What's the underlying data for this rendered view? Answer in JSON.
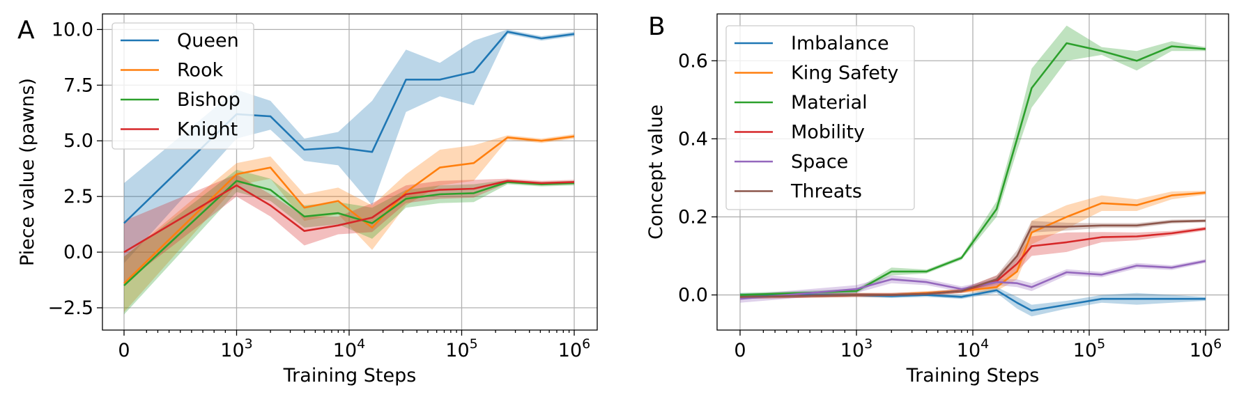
{
  "chart_data": [
    {
      "type": "line",
      "panel_label": "A",
      "xlabel": "Training Steps",
      "ylabel": "Piece value (pawns)",
      "x_scale": "symlog",
      "x_ticks": [
        {
          "value": 0,
          "label": "0"
        },
        {
          "value": 1000,
          "label": "10",
          "exp": "3"
        },
        {
          "value": 10000,
          "label": "10",
          "exp": "4"
        },
        {
          "value": 100000,
          "label": "10",
          "exp": "5"
        },
        {
          "value": 1000000,
          "label": "10",
          "exp": "6"
        }
      ],
      "ylim": [
        -3.5,
        10.7
      ],
      "y_ticks": [
        {
          "value": -2.5,
          "label": "−2.5"
        },
        {
          "value": 0,
          "label": "0.0"
        },
        {
          "value": 2.5,
          "label": "2.5"
        },
        {
          "value": 5,
          "label": "5.0"
        },
        {
          "value": 7.5,
          "label": "7.5"
        },
        {
          "value": 10,
          "label": "10.0"
        }
      ],
      "grid": true,
      "legend_position": "top-left",
      "x": [
        0,
        1000,
        2000,
        4000,
        8000,
        16000,
        32000,
        64000,
        128000,
        256000,
        512000,
        1000000
      ],
      "series": [
        {
          "name": "Queen",
          "color": "#1f77b4",
          "values": [
            1.3,
            6.2,
            6.1,
            4.6,
            4.7,
            4.5,
            7.75,
            7.75,
            8.1,
            9.9,
            9.6,
            9.8
          ],
          "lower": [
            -0.5,
            5.1,
            5.5,
            4.1,
            3.9,
            2.1,
            6.3,
            7.0,
            6.6,
            9.8,
            9.5,
            9.7
          ],
          "upper": [
            3.1,
            7.3,
            6.8,
            5.1,
            5.4,
            6.8,
            9.1,
            8.5,
            9.5,
            10.0,
            9.7,
            9.9
          ]
        },
        {
          "name": "Rook",
          "color": "#ff7f0e",
          "values": [
            -1.4,
            3.5,
            3.8,
            2.0,
            2.3,
            1.1,
            2.7,
            3.8,
            4.0,
            5.15,
            5.0,
            5.2
          ],
          "lower": [
            -2.7,
            3.0,
            3.3,
            1.4,
            1.7,
            0.1,
            2.1,
            3.0,
            3.2,
            5.05,
            4.9,
            5.1
          ],
          "upper": [
            -0.2,
            4.0,
            4.3,
            2.6,
            2.9,
            2.1,
            3.5,
            4.6,
            4.8,
            5.25,
            5.1,
            5.3
          ]
        },
        {
          "name": "Bishop",
          "color": "#2ca02c",
          "values": [
            -1.5,
            3.2,
            2.8,
            1.6,
            1.75,
            1.3,
            2.4,
            2.6,
            2.65,
            3.15,
            3.05,
            3.1
          ],
          "lower": [
            -2.8,
            2.7,
            2.3,
            1.1,
            1.25,
            0.6,
            2.0,
            2.2,
            2.25,
            3.05,
            2.95,
            3.0
          ],
          "upper": [
            -0.2,
            3.7,
            3.3,
            2.1,
            2.25,
            2.0,
            2.8,
            3.0,
            3.05,
            3.25,
            3.15,
            3.2
          ]
        },
        {
          "name": "Knight",
          "color": "#d62728",
          "values": [
            0.0,
            3.0,
            2.1,
            0.95,
            1.2,
            1.55,
            2.6,
            2.8,
            2.85,
            3.2,
            3.1,
            3.15
          ],
          "lower": [
            -1.4,
            2.5,
            1.6,
            0.3,
            0.8,
            0.9,
            2.2,
            2.4,
            2.45,
            3.1,
            3.0,
            3.05
          ],
          "upper": [
            1.4,
            3.5,
            2.6,
            1.6,
            1.6,
            2.2,
            3.0,
            3.2,
            3.25,
            3.3,
            3.2,
            3.25
          ]
        }
      ]
    },
    {
      "type": "line",
      "panel_label": "B",
      "xlabel": "Training Steps",
      "ylabel": "Concept value",
      "x_scale": "symlog",
      "x_ticks": [
        {
          "value": 0,
          "label": "0"
        },
        {
          "value": 1000,
          "label": "10",
          "exp": "3"
        },
        {
          "value": 10000,
          "label": "10",
          "exp": "4"
        },
        {
          "value": 100000,
          "label": "10",
          "exp": "5"
        },
        {
          "value": 1000000,
          "label": "10",
          "exp": "6"
        }
      ],
      "ylim": [
        -0.09,
        0.72
      ],
      "y_ticks": [
        {
          "value": 0,
          "label": "0.0"
        },
        {
          "value": 0.2,
          "label": "0.2"
        },
        {
          "value": 0.4,
          "label": "0.4"
        },
        {
          "value": 0.6,
          "label": "0.6"
        }
      ],
      "grid": true,
      "legend_position": "top-left",
      "x": [
        0,
        1000,
        2000,
        4000,
        8000,
        16000,
        24000,
        32000,
        64000,
        128000,
        256000,
        512000,
        1000000
      ],
      "series": [
        {
          "name": "Imbalance",
          "color": "#1f77b4",
          "values": [
            0.0,
            0.0,
            -0.003,
            0.0,
            -0.005,
            0.012,
            -0.02,
            -0.04,
            -0.025,
            -0.01,
            -0.01,
            -0.01,
            -0.01
          ],
          "lower": [
            -0.005,
            -0.005,
            -0.008,
            -0.005,
            -0.01,
            0.005,
            -0.035,
            -0.055,
            -0.035,
            -0.02,
            -0.025,
            -0.02,
            -0.015
          ],
          "upper": [
            0.005,
            0.005,
            0.002,
            0.005,
            0.0,
            0.02,
            -0.005,
            -0.025,
            -0.015,
            0.0,
            0.005,
            0.0,
            -0.005
          ]
        },
        {
          "name": "King Safety",
          "color": "#ff7f0e",
          "values": [
            -0.005,
            0.0,
            0.0,
            0.005,
            0.01,
            0.02,
            0.06,
            0.16,
            0.2,
            0.235,
            0.23,
            0.255,
            0.262
          ],
          "lower": [
            -0.01,
            -0.005,
            -0.005,
            0.0,
            0.005,
            0.01,
            0.04,
            0.13,
            0.17,
            0.215,
            0.215,
            0.245,
            0.257
          ],
          "upper": [
            0.0,
            0.005,
            0.005,
            0.01,
            0.015,
            0.03,
            0.08,
            0.19,
            0.23,
            0.255,
            0.245,
            0.265,
            0.267
          ]
        },
        {
          "name": "Material",
          "color": "#2ca02c",
          "values": [
            0.0,
            0.01,
            0.06,
            0.06,
            0.095,
            0.22,
            0.4,
            0.53,
            0.645,
            0.625,
            0.6,
            0.637,
            0.63
          ],
          "lower": [
            -0.005,
            0.005,
            0.05,
            0.055,
            0.09,
            0.2,
            0.37,
            0.48,
            0.6,
            0.615,
            0.575,
            0.625,
            0.625
          ],
          "upper": [
            0.005,
            0.015,
            0.07,
            0.065,
            0.1,
            0.24,
            0.43,
            0.58,
            0.69,
            0.635,
            0.625,
            0.65,
            0.635
          ]
        },
        {
          "name": "Mobility",
          "color": "#d62728",
          "values": [
            -0.005,
            0.0,
            0.0,
            0.003,
            0.01,
            0.035,
            0.08,
            0.125,
            0.135,
            0.148,
            0.15,
            0.158,
            0.17
          ],
          "lower": [
            -0.01,
            -0.005,
            -0.005,
            -0.002,
            0.005,
            0.02,
            0.06,
            0.1,
            0.11,
            0.135,
            0.14,
            0.152,
            0.165
          ],
          "upper": [
            0.0,
            0.005,
            0.005,
            0.008,
            0.015,
            0.05,
            0.1,
            0.15,
            0.16,
            0.161,
            0.16,
            0.164,
            0.175
          ]
        },
        {
          "name": "Space",
          "color": "#9467bd",
          "values": [
            -0.01,
            0.015,
            0.04,
            0.033,
            0.015,
            0.033,
            0.03,
            0.02,
            0.058,
            0.052,
            0.075,
            0.07,
            0.087
          ],
          "lower": [
            -0.02,
            0.005,
            0.03,
            0.025,
            0.008,
            0.025,
            0.02,
            0.01,
            0.05,
            0.045,
            0.068,
            0.064,
            0.082
          ],
          "upper": [
            0.0,
            0.025,
            0.05,
            0.041,
            0.022,
            0.041,
            0.04,
            0.03,
            0.066,
            0.059,
            0.082,
            0.076,
            0.092
          ]
        },
        {
          "name": "Threats",
          "color": "#8c564b",
          "values": [
            -0.005,
            0.0,
            0.0,
            0.003,
            0.01,
            0.04,
            0.1,
            0.175,
            0.175,
            0.178,
            0.178,
            0.188,
            0.19
          ],
          "lower": [
            -0.01,
            -0.005,
            -0.005,
            -0.002,
            0.005,
            0.03,
            0.085,
            0.16,
            0.165,
            0.172,
            0.172,
            0.183,
            0.186
          ],
          "upper": [
            0.0,
            0.005,
            0.005,
            0.008,
            0.015,
            0.05,
            0.115,
            0.19,
            0.185,
            0.184,
            0.184,
            0.193,
            0.194
          ]
        }
      ]
    }
  ]
}
